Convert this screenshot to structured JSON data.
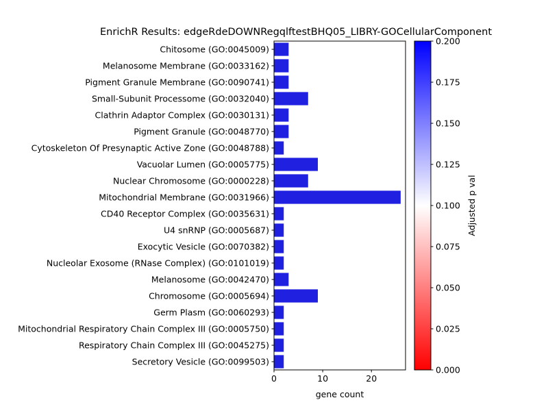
{
  "chart_data": {
    "type": "bar",
    "orientation": "horizontal",
    "title": "EnrichR Results: edgeRdeDOWNRegqlftestBHQ05_LIBRY-GOCellularComponent",
    "xlabel": "gene count",
    "ylabel": "",
    "xlim": [
      0,
      27
    ],
    "x_ticks": [
      0,
      10,
      20
    ],
    "grid": false,
    "categories": [
      "Chitosome (GO:0045009)",
      "Melanosome Membrane (GO:0033162)",
      "Pigment Granule Membrane (GO:0090741)",
      "Small-Subunit Processome (GO:0032040)",
      "Clathrin Adaptor Complex (GO:0030131)",
      "Pigment Granule (GO:0048770)",
      "Cytoskeleton Of Presynaptic Active Zone (GO:0048788)",
      "Vacuolar Lumen (GO:0005775)",
      "Nuclear Chromosome (GO:0000228)",
      "Mitochondrial Membrane (GO:0031966)",
      "CD40 Receptor Complex (GO:0035631)",
      "U4 snRNP (GO:0005687)",
      "Exocytic Vesicle (GO:0070382)",
      "Nucleolar Exosome (RNase Complex) (GO:0101019)",
      "Melanosome (GO:0042470)",
      "Chromosome (GO:0005694)",
      "Germ Plasm (GO:0060293)",
      "Mitochondrial Respiratory Chain Complex III (GO:0005750)",
      "Respiratory Chain Complex III (GO:0045275)",
      "Secretory Vesicle (GO:0099503)"
    ],
    "values": [
      3,
      3,
      3,
      7,
      3,
      3,
      2,
      9,
      7,
      26,
      2,
      2,
      2,
      2,
      3,
      9,
      2,
      2,
      2,
      2
    ],
    "bar_color": "#2020e0",
    "colorbar": {
      "label": "Adjusted p val",
      "range": [
        0,
        0.2
      ],
      "ticks": [
        "0.000",
        "0.025",
        "0.050",
        "0.075",
        "0.100",
        "0.125",
        "0.150",
        "0.175",
        "0.200"
      ],
      "colors": [
        "#ff0000",
        "#ffffff",
        "#0000ff"
      ]
    }
  }
}
